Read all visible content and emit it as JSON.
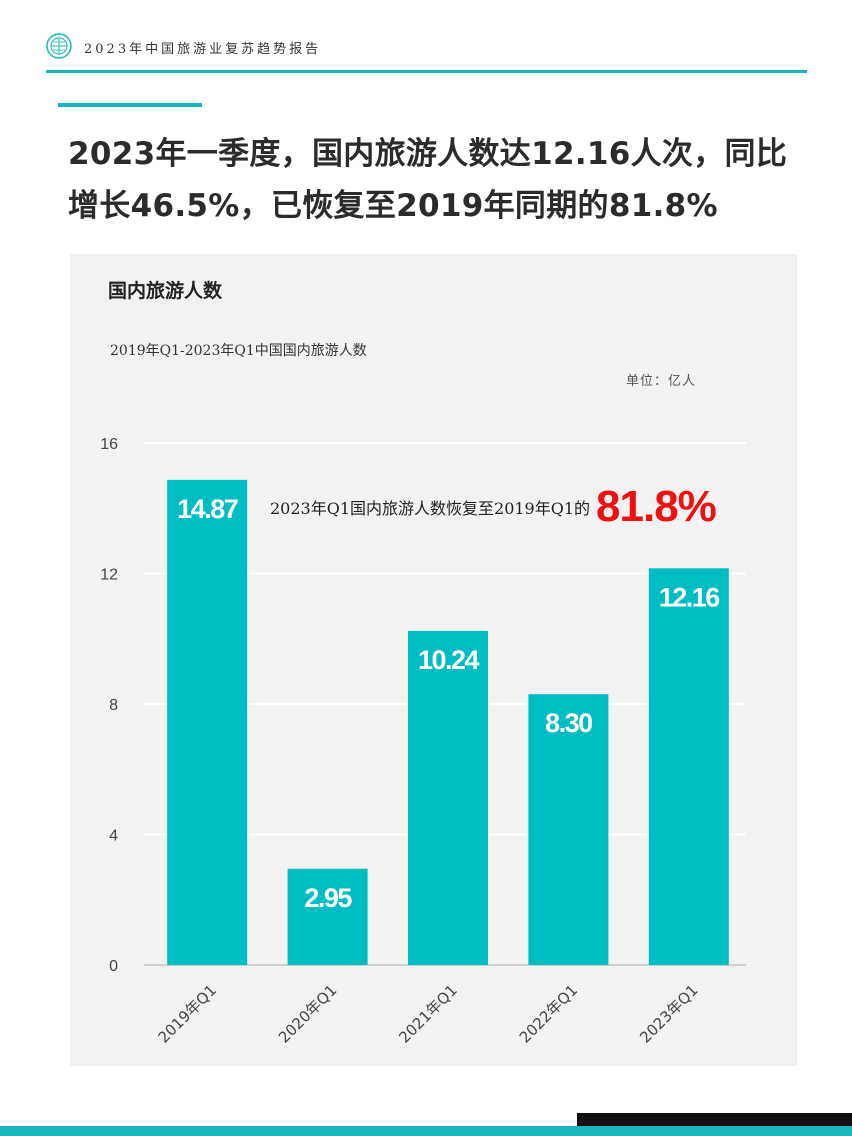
{
  "header": {
    "title": "2023年中国旅游业复苏趋势报告",
    "logo_icon": "globe-logo-icon"
  },
  "headline": "2023年一季度，国内旅游人数达12.16人次，同比增长46.5%，已恢复至2019年同期的81.8%",
  "colors": {
    "accent": "#19b7bd",
    "bar": "#00bdc3",
    "highlight": "#ee1111",
    "panel_bg": "#f2f2f2"
  },
  "chart_data": {
    "type": "bar",
    "title": "国内旅游人数",
    "subtitle": "2019年Q1-2023年Q1中国国内旅游人数",
    "unit": "单位：亿人",
    "categories": [
      "2019年Q1",
      "2020年Q1",
      "2021年Q1",
      "2022年Q1",
      "2023年Q1"
    ],
    "values": [
      14.87,
      2.95,
      10.24,
      8.3,
      12.16
    ],
    "value_labels": [
      "14.87",
      "2.95",
      "10.24",
      "8.30",
      "12.16"
    ],
    "ylim": [
      0,
      16
    ],
    "yticks": [
      0,
      4,
      8,
      12,
      16
    ],
    "grid": true,
    "annotation": {
      "text": "2023年Q1国内旅游人数恢复至2019年Q1的",
      "value": "81.8%"
    }
  }
}
